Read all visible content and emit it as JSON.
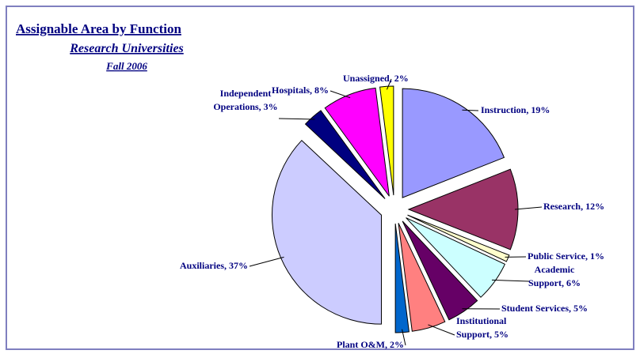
{
  "chart_data": {
    "type": "pie",
    "title": "Assignable Area by Function",
    "subtitle": "Research Universities",
    "annotation": "Fall 2006",
    "values": [
      19,
      12,
      1,
      6,
      5,
      5,
      2,
      37,
      3,
      8,
      2
    ],
    "value_labels": [
      "Instruction, 19%",
      "Research, 12%",
      "Public Service, 1%",
      "Academic\nSupport, 6%",
      "Student Services, 5%",
      "Institutional\nSupport, 5%",
      "Plant O&M, 2%",
      "Auxiliaries, 37%",
      "Independent\nOperations, 3%",
      "Hospitals, 8%",
      "Unassigned, 2%"
    ],
    "colors": [
      "#9999ff",
      "#993366",
      "#ffffcc",
      "#ccffff",
      "#660066",
      "#ff8080",
      "#0066cc",
      "#ccccff",
      "#000080",
      "#ff00ff",
      "#ffff00"
    ]
  }
}
